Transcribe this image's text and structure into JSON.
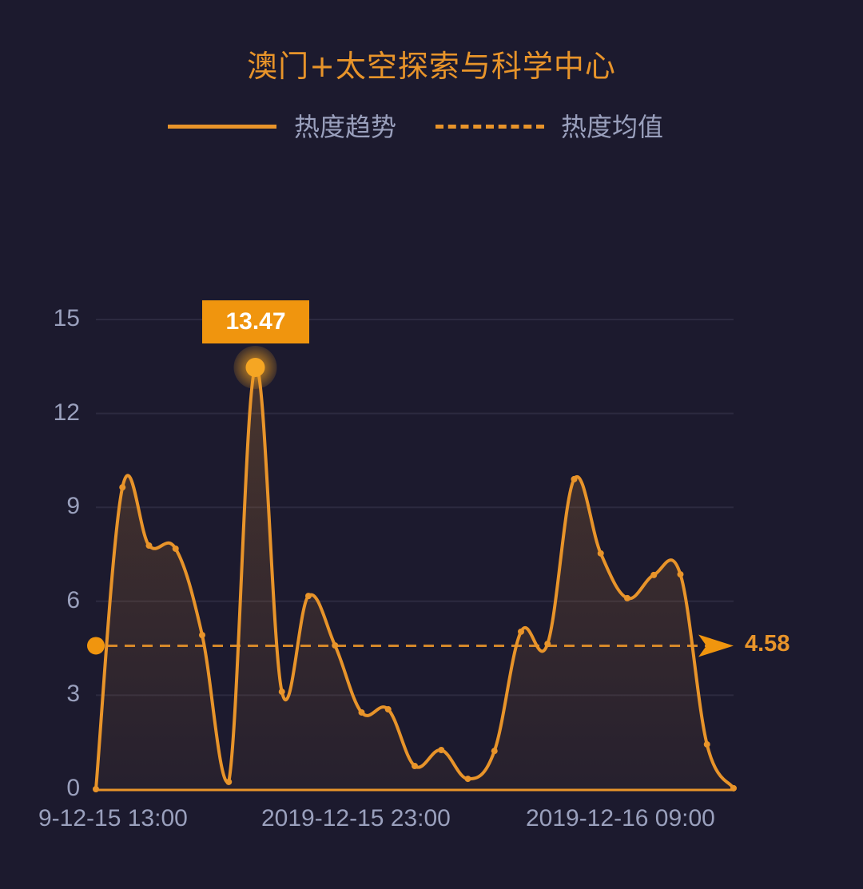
{
  "chart_data": {
    "type": "area",
    "title": "澳门+太空探索与科学中心",
    "legend": [
      {
        "name": "热度趋势",
        "style": "solid",
        "color": "#e8942a"
      },
      {
        "name": "热度均值",
        "style": "dashed",
        "color": "#e8942a"
      }
    ],
    "legend_position": "top",
    "xlabel": "",
    "ylabel": "",
    "ylim": [
      0,
      15
    ],
    "yticks": [
      "0",
      "3",
      "6",
      "9",
      "12",
      "15"
    ],
    "xtick_labels": [
      "9-12-15 13:00",
      "2019-12-15 23:00",
      "2019-12-16 09:00"
    ],
    "grid": true,
    "series": [
      {
        "name": "热度趋势",
        "values": [
          0,
          9.64,
          7.78,
          7.68,
          4.92,
          0.23,
          13.47,
          3.11,
          6.17,
          4.59,
          2.45,
          2.55,
          0.74,
          1.25,
          0.33,
          1.22,
          5.03,
          4.64,
          9.9,
          7.53,
          6.1,
          6.84,
          6.86,
          1.43,
          0.03
        ]
      }
    ],
    "mean": 4.58,
    "mean_label": "4.58",
    "max_annotation": {
      "index": 6,
      "value": 13.47,
      "label": "13.47"
    },
    "colors": {
      "line": "#e8942a",
      "background": "#1c1a2e",
      "grid": "#2c2a40",
      "text": "#9aa0bd",
      "badge": "#f0950e"
    }
  }
}
